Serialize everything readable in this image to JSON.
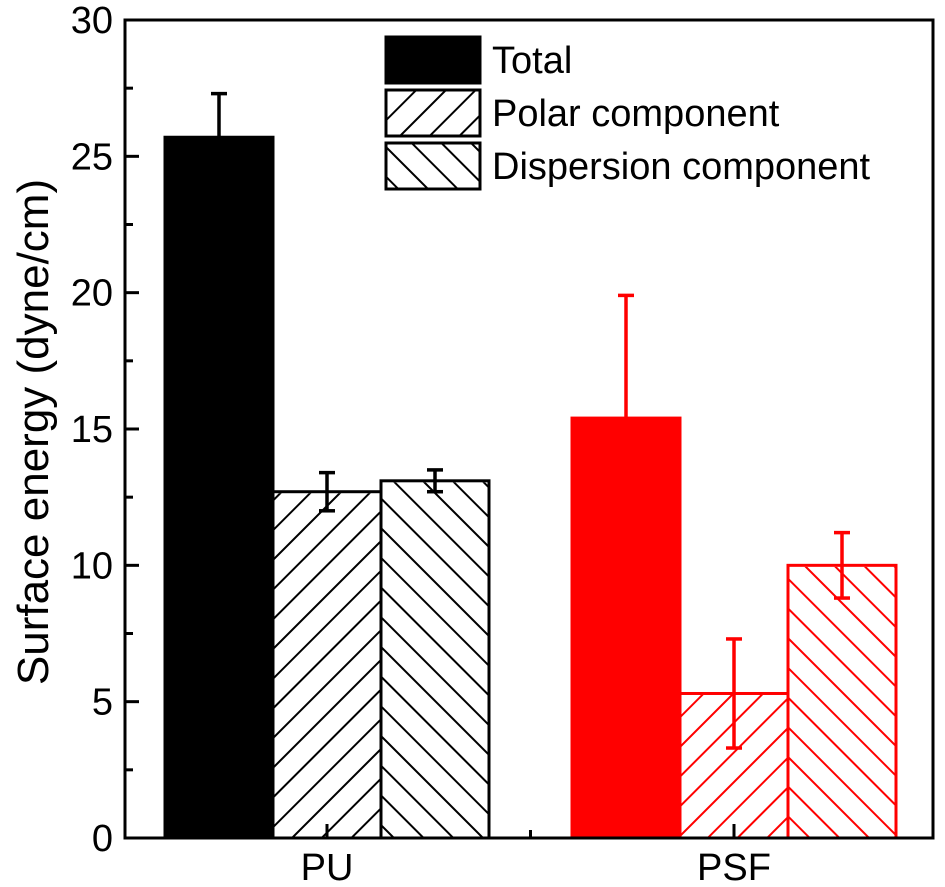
{
  "chart_data": {
    "type": "bar",
    "title": "",
    "xlabel": "",
    "ylabel": "Surface energy (dyne/cm)",
    "ylim": [
      0,
      30
    ],
    "yticks": [
      0,
      5,
      10,
      15,
      20,
      25,
      30
    ],
    "categories": [
      "PU",
      "PSF"
    ],
    "category_colors": [
      "#000000",
      "#ff0000"
    ],
    "series": [
      {
        "name": "Total",
        "pattern": "solid",
        "values": [
          25.7,
          15.4
        ],
        "errors": [
          1.6,
          4.5
        ]
      },
      {
        "name": "Polar component",
        "pattern": "forward-hatch",
        "values": [
          12.7,
          5.3
        ],
        "errors": [
          0.7,
          2.0
        ]
      },
      {
        "name": "Dispersion component",
        "pattern": "back-hatch",
        "values": [
          13.1,
          10.0
        ],
        "errors": [
          0.4,
          1.2
        ]
      }
    ],
    "legend_position": "top-right",
    "grid": false
  }
}
